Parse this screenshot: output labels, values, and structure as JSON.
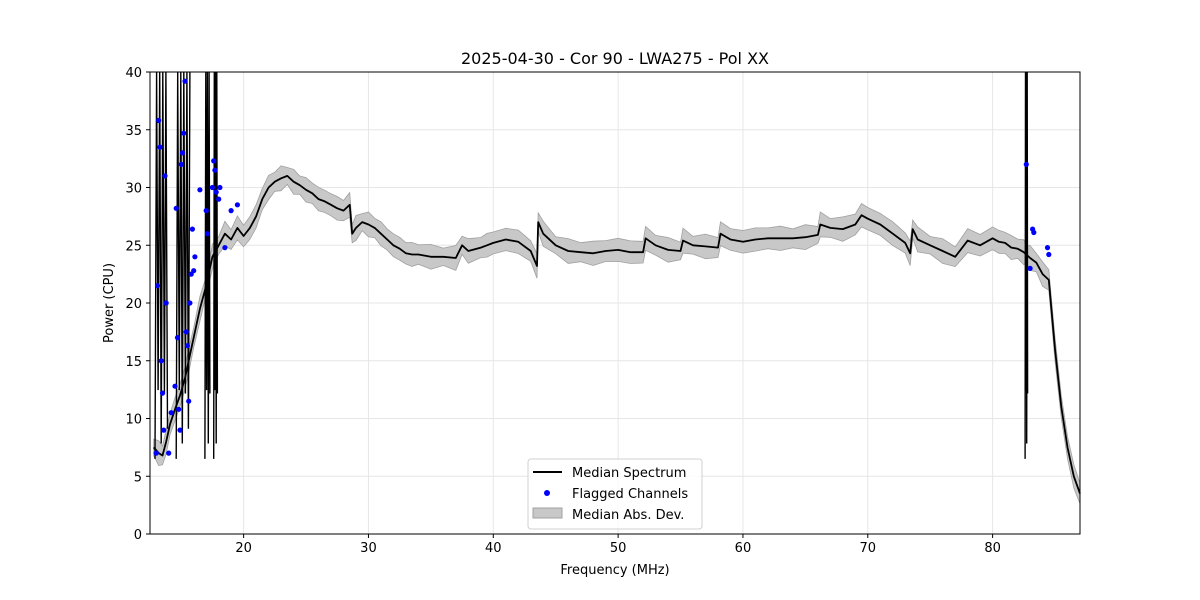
{
  "chart_data": {
    "type": "line",
    "title": "2025-04-30 - Cor 90 - LWA275 - Pol XX",
    "xlabel": "Frequency (MHz)",
    "ylabel": "Power (CPU)",
    "xlim": [
      12.5,
      87.0
    ],
    "ylim": [
      0,
      40
    ],
    "xticks": [
      20,
      30,
      40,
      50,
      60,
      70,
      80
    ],
    "yticks": [
      0,
      5,
      10,
      15,
      20,
      25,
      30,
      35,
      40
    ],
    "xtick_labels": [
      "20",
      "30",
      "40",
      "50",
      "60",
      "70",
      "80"
    ],
    "ytick_labels": [
      "0",
      "5",
      "10",
      "15",
      "20",
      "25",
      "30",
      "35",
      "40"
    ],
    "grid": true,
    "legend_position": "bottom-center",
    "colors": {
      "median": "#000000",
      "flagged": "#0000ff",
      "mad_fill": "#c8c8c8",
      "mad_edge": "#a0a0a0"
    },
    "series": [
      {
        "name": "Median Spectrum",
        "kind": "line",
        "x": [
          12.8,
          13.2,
          13.5,
          13.8,
          14.1,
          14.5,
          14.9,
          15.3,
          15.6,
          16.0,
          16.5,
          17.0,
          17.5,
          18.0,
          18.5,
          19.0,
          19.5,
          20.0,
          20.5,
          21.0,
          21.5,
          22.0,
          22.5,
          23.0,
          23.5,
          24.0,
          24.5,
          25.0,
          25.5,
          26.0,
          26.5,
          27.0,
          27.5,
          28.0,
          28.5,
          28.7,
          29.0,
          29.5,
          30.0,
          30.5,
          31.0,
          31.5,
          32.0,
          32.5,
          33.0,
          33.5,
          34.0,
          35.0,
          36.0,
          37.0,
          37.5,
          38.0,
          39.0,
          39.5,
          40.0,
          41.0,
          42.0,
          43.0,
          43.5,
          43.6,
          44.0,
          45.0,
          46.0,
          47.0,
          48.0,
          49.0,
          50.0,
          51.0,
          52.0,
          52.2,
          53.0,
          54.0,
          55.0,
          55.2,
          56.0,
          57.0,
          58.0,
          58.2,
          59.0,
          60.0,
          61.0,
          62.0,
          63.0,
          64.0,
          65.0,
          66.0,
          66.2,
          67.0,
          68.0,
          69.0,
          69.5,
          70.0,
          71.0,
          72.0,
          73.0,
          73.4,
          73.6,
          74.0,
          75.0,
          76.0,
          77.0,
          78.0,
          79.0,
          80.0,
          80.5,
          81.0,
          81.5,
          82.0,
          82.5,
          82.7,
          83.0,
          83.5,
          84.0,
          84.5,
          85.0,
          85.5,
          86.0,
          86.5,
          87.0
        ],
        "y": [
          7.5,
          7.0,
          6.8,
          8.0,
          9.5,
          10.8,
          12.0,
          13.5,
          15.0,
          17.0,
          19.5,
          21.5,
          24.0,
          25.0,
          26.0,
          25.5,
          26.5,
          25.8,
          26.5,
          27.5,
          29.0,
          30.0,
          30.5,
          30.8,
          31.0,
          30.5,
          30.2,
          29.8,
          29.5,
          29.0,
          28.8,
          28.5,
          28.2,
          28.0,
          28.5,
          26.0,
          26.5,
          27.0,
          26.8,
          26.5,
          26.0,
          25.5,
          25.0,
          24.7,
          24.3,
          24.2,
          24.2,
          24.0,
          24.0,
          23.9,
          25.0,
          24.5,
          24.8,
          25.0,
          25.2,
          25.5,
          25.3,
          24.5,
          23.2,
          27.0,
          26.0,
          25.0,
          24.5,
          24.4,
          24.3,
          24.5,
          24.6,
          24.4,
          24.4,
          25.6,
          25.0,
          24.6,
          24.5,
          25.4,
          25.0,
          24.9,
          24.8,
          26.0,
          25.5,
          25.3,
          25.5,
          25.6,
          25.6,
          25.6,
          25.7,
          25.9,
          26.8,
          26.5,
          26.4,
          26.8,
          27.6,
          27.3,
          26.8,
          26.0,
          25.2,
          24.3,
          26.4,
          25.5,
          25.0,
          24.5,
          24.0,
          25.4,
          25.0,
          25.6,
          25.3,
          25.2,
          24.8,
          24.7,
          24.4,
          24.2,
          23.9,
          23.5,
          22.5,
          22.0,
          16.0,
          11.0,
          7.5,
          5.0,
          3.5
        ]
      },
      {
        "name": "Flagged Channels",
        "kind": "scatter",
        "x": [
          13.0,
          13.1,
          13.2,
          13.3,
          13.4,
          13.5,
          13.6,
          13.7,
          13.8,
          14.0,
          14.2,
          14.5,
          14.6,
          14.7,
          14.8,
          14.9,
          15.0,
          15.1,
          15.2,
          15.3,
          15.4,
          15.5,
          15.6,
          15.7,
          15.8,
          15.9,
          16.0,
          16.1,
          16.5,
          17.0,
          17.1,
          17.5,
          17.6,
          17.7,
          17.8,
          18.0,
          18.1,
          18.5,
          19.0,
          19.5,
          82.7,
          83.0,
          83.2,
          83.3,
          84.4,
          84.5
        ],
        "y": [
          7.0,
          21.5,
          35.8,
          33.5,
          15.0,
          12.2,
          9.0,
          31.0,
          20.0,
          7.0,
          10.5,
          12.8,
          28.2,
          17.0,
          10.8,
          9.0,
          32.0,
          33.0,
          34.7,
          39.2,
          17.5,
          16.3,
          11.5,
          20.0,
          22.5,
          26.4,
          22.8,
          24.0,
          29.8,
          28.0,
          26.0,
          30.0,
          32.3,
          31.5,
          29.6,
          29.0,
          30.0,
          24.8,
          28.0,
          28.5,
          32.0,
          23.0,
          26.4,
          26.1,
          24.8,
          24.2
        ]
      },
      {
        "name": "Median Abs. Dev.",
        "kind": "band"
      }
    ],
    "band_halfwidth": 0.9,
    "spike_regions": [
      [
        12.9,
        13.9
      ],
      [
        14.6,
        15.7
      ],
      [
        16.9,
        17.3
      ],
      [
        17.6,
        17.9
      ],
      [
        82.6,
        82.8
      ]
    ]
  }
}
